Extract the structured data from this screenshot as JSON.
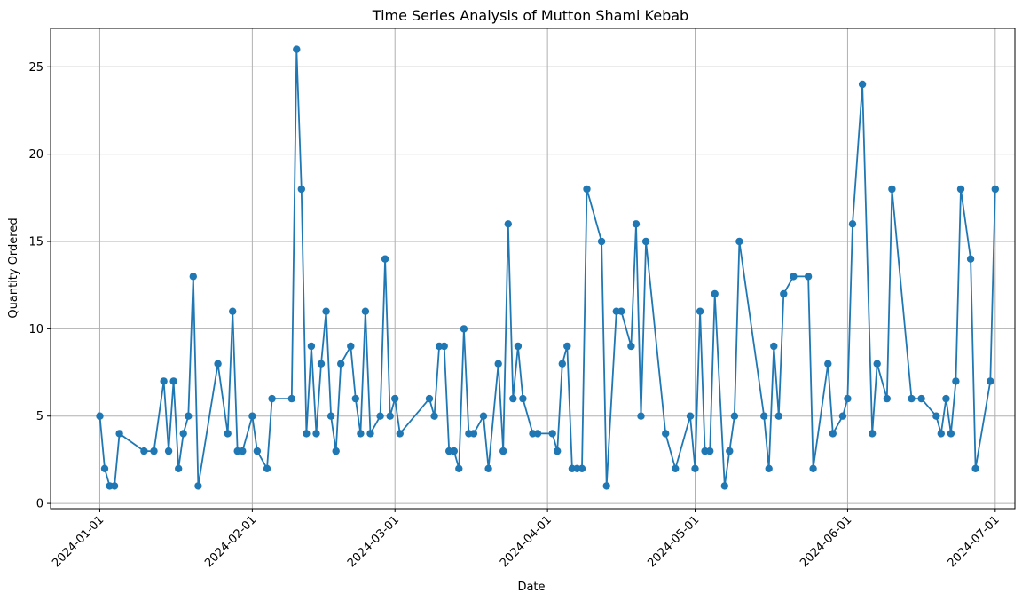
{
  "chart_data": {
    "type": "line",
    "title": "Time Series Analysis of Mutton Shami Kebab",
    "xlabel": "Date",
    "ylabel": "Quantity Ordered",
    "x_ticks": [
      "2024-01-01",
      "2024-02-01",
      "2024-03-01",
      "2024-04-01",
      "2024-05-01",
      "2024-06-01",
      "2024-07-01"
    ],
    "y_ticks": [
      0,
      5,
      10,
      15,
      20,
      25
    ],
    "xlim": [
      "2023-12-22",
      "2024-07-05"
    ],
    "ylim": [
      -0.3,
      27.2
    ],
    "grid": true,
    "markers": true,
    "color": "#1f77b4",
    "series": [
      {
        "points": [
          [
            "2024-01-01",
            5
          ],
          [
            "2024-01-02",
            2
          ],
          [
            "2024-01-03",
            1
          ],
          [
            "2024-01-04",
            1
          ],
          [
            "2024-01-05",
            4
          ],
          [
            "2024-01-10",
            3
          ],
          [
            "2024-01-12",
            3
          ],
          [
            "2024-01-14",
            7
          ],
          [
            "2024-01-15",
            3
          ],
          [
            "2024-01-16",
            7
          ],
          [
            "2024-01-17",
            2
          ],
          [
            "2024-01-18",
            4
          ],
          [
            "2024-01-19",
            5
          ],
          [
            "2024-01-20",
            13
          ],
          [
            "2024-01-21",
            1
          ],
          [
            "2024-01-25",
            8
          ],
          [
            "2024-01-27",
            4
          ],
          [
            "2024-01-28",
            11
          ],
          [
            "2024-01-29",
            3
          ],
          [
            "2024-01-30",
            3
          ],
          [
            "2024-02-01",
            5
          ],
          [
            "2024-02-02",
            3
          ],
          [
            "2024-02-04",
            2
          ],
          [
            "2024-02-05",
            6
          ],
          [
            "2024-02-09",
            6
          ],
          [
            "2024-02-10",
            26
          ],
          [
            "2024-02-11",
            18
          ],
          [
            "2024-02-12",
            4
          ],
          [
            "2024-02-13",
            9
          ],
          [
            "2024-02-14",
            4
          ],
          [
            "2024-02-15",
            8
          ],
          [
            "2024-02-16",
            11
          ],
          [
            "2024-02-17",
            5
          ],
          [
            "2024-02-18",
            3
          ],
          [
            "2024-02-19",
            8
          ],
          [
            "2024-02-21",
            9
          ],
          [
            "2024-02-22",
            6
          ],
          [
            "2024-02-23",
            4
          ],
          [
            "2024-02-24",
            11
          ],
          [
            "2024-02-25",
            4
          ],
          [
            "2024-02-27",
            5
          ],
          [
            "2024-02-28",
            14
          ],
          [
            "2024-02-29",
            5
          ],
          [
            "2024-03-01",
            6
          ],
          [
            "2024-03-02",
            4
          ],
          [
            "2024-03-08",
            6
          ],
          [
            "2024-03-09",
            5
          ],
          [
            "2024-03-10",
            9
          ],
          [
            "2024-03-11",
            9
          ],
          [
            "2024-03-12",
            3
          ],
          [
            "2024-03-13",
            3
          ],
          [
            "2024-03-14",
            2
          ],
          [
            "2024-03-15",
            10
          ],
          [
            "2024-03-16",
            4
          ],
          [
            "2024-03-17",
            4
          ],
          [
            "2024-03-19",
            5
          ],
          [
            "2024-03-20",
            2
          ],
          [
            "2024-03-22",
            8
          ],
          [
            "2024-03-23",
            3
          ],
          [
            "2024-03-24",
            16
          ],
          [
            "2024-03-25",
            6
          ],
          [
            "2024-03-26",
            9
          ],
          [
            "2024-03-27",
            6
          ],
          [
            "2024-03-29",
            4
          ],
          [
            "2024-03-30",
            4
          ],
          [
            "2024-04-02",
            4
          ],
          [
            "2024-04-03",
            3
          ],
          [
            "2024-04-04",
            8
          ],
          [
            "2024-04-05",
            9
          ],
          [
            "2024-04-06",
            2
          ],
          [
            "2024-04-07",
            2
          ],
          [
            "2024-04-08",
            2
          ],
          [
            "2024-04-09",
            18
          ],
          [
            "2024-04-12",
            15
          ],
          [
            "2024-04-13",
            1
          ],
          [
            "2024-04-15",
            11
          ],
          [
            "2024-04-16",
            11
          ],
          [
            "2024-04-18",
            9
          ],
          [
            "2024-04-19",
            16
          ],
          [
            "2024-04-20",
            5
          ],
          [
            "2024-04-21",
            15
          ],
          [
            "2024-04-25",
            4
          ],
          [
            "2024-04-27",
            2
          ],
          [
            "2024-04-30",
            5
          ],
          [
            "2024-05-01",
            2
          ],
          [
            "2024-05-02",
            11
          ],
          [
            "2024-05-03",
            3
          ],
          [
            "2024-05-04",
            3
          ],
          [
            "2024-05-05",
            12
          ],
          [
            "2024-05-07",
            1
          ],
          [
            "2024-05-08",
            3
          ],
          [
            "2024-05-09",
            5
          ],
          [
            "2024-05-10",
            15
          ],
          [
            "2024-05-15",
            5
          ],
          [
            "2024-05-16",
            2
          ],
          [
            "2024-05-17",
            9
          ],
          [
            "2024-05-18",
            5
          ],
          [
            "2024-05-19",
            12
          ],
          [
            "2024-05-21",
            13
          ],
          [
            "2024-05-24",
            13
          ],
          [
            "2024-05-25",
            2
          ],
          [
            "2024-05-28",
            8
          ],
          [
            "2024-05-29",
            4
          ],
          [
            "2024-05-31",
            5
          ],
          [
            "2024-06-01",
            6
          ],
          [
            "2024-06-02",
            16
          ],
          [
            "2024-06-04",
            24
          ],
          [
            "2024-06-06",
            4
          ],
          [
            "2024-06-07",
            8
          ],
          [
            "2024-06-09",
            6
          ],
          [
            "2024-06-10",
            18
          ],
          [
            "2024-06-14",
            6
          ],
          [
            "2024-06-16",
            6
          ],
          [
            "2024-06-19",
            5
          ],
          [
            "2024-06-20",
            4
          ],
          [
            "2024-06-21",
            6
          ],
          [
            "2024-06-22",
            4
          ],
          [
            "2024-06-23",
            7
          ],
          [
            "2024-06-24",
            18
          ],
          [
            "2024-06-26",
            14
          ],
          [
            "2024-06-27",
            2
          ],
          [
            "2024-06-30",
            7
          ],
          [
            "2024-07-01",
            18
          ]
        ]
      }
    ]
  }
}
